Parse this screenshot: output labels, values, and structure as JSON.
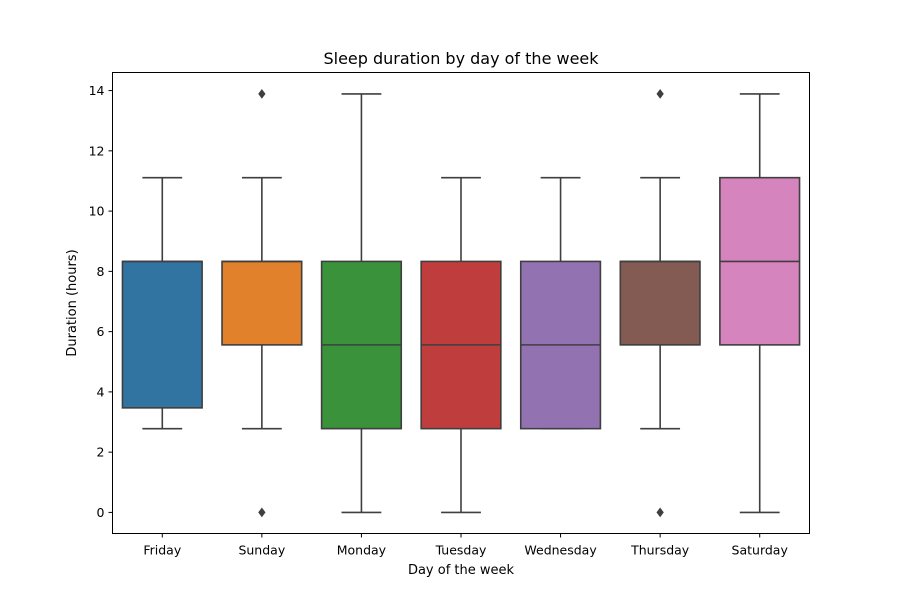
{
  "chart_data": {
    "type": "boxplot",
    "title": "Sleep duration by day of the week",
    "xlabel": "Day of the week",
    "ylabel": "Duration (hours)",
    "ylim": [
      -0.7,
      14.6
    ],
    "yticks": [
      0,
      2,
      4,
      6,
      8,
      10,
      12,
      14
    ],
    "grid": false,
    "categories": [
      "Friday",
      "Sunday",
      "Monday",
      "Tuesday",
      "Wednesday",
      "Thursday",
      "Saturday"
    ],
    "boxes": [
      {
        "category": "Friday",
        "whisker_low": 2.78,
        "q1": 3.47,
        "median": 8.33,
        "q3": 8.33,
        "whisker_high": 11.11,
        "outliers": [],
        "color": "#3274a1"
      },
      {
        "category": "Sunday",
        "whisker_low": 2.78,
        "q1": 5.56,
        "median": 8.33,
        "q3": 8.33,
        "whisker_high": 11.11,
        "outliers": [
          0,
          13.89
        ],
        "color": "#e1812c"
      },
      {
        "category": "Monday",
        "whisker_low": 0,
        "q1": 2.78,
        "median": 5.56,
        "q3": 8.33,
        "whisker_high": 13.89,
        "outliers": [],
        "color": "#3a923a"
      },
      {
        "category": "Tuesday",
        "whisker_low": 0,
        "q1": 2.78,
        "median": 5.56,
        "q3": 8.33,
        "whisker_high": 11.11,
        "outliers": [],
        "color": "#c03d3e"
      },
      {
        "category": "Wednesday",
        "whisker_low": 2.78,
        "q1": 2.78,
        "median": 5.56,
        "q3": 8.33,
        "whisker_high": 11.11,
        "outliers": [],
        "color": "#9372b2"
      },
      {
        "category": "Thursday",
        "whisker_low": 2.78,
        "q1": 5.56,
        "median": 8.33,
        "q3": 8.33,
        "whisker_high": 11.11,
        "outliers": [
          0,
          13.89
        ],
        "color": "#845b53"
      },
      {
        "category": "Saturday",
        "whisker_low": 0,
        "q1": 5.56,
        "median": 8.33,
        "q3": 11.11,
        "whisker_high": 13.89,
        "outliers": [],
        "color": "#d684bd"
      }
    ]
  }
}
